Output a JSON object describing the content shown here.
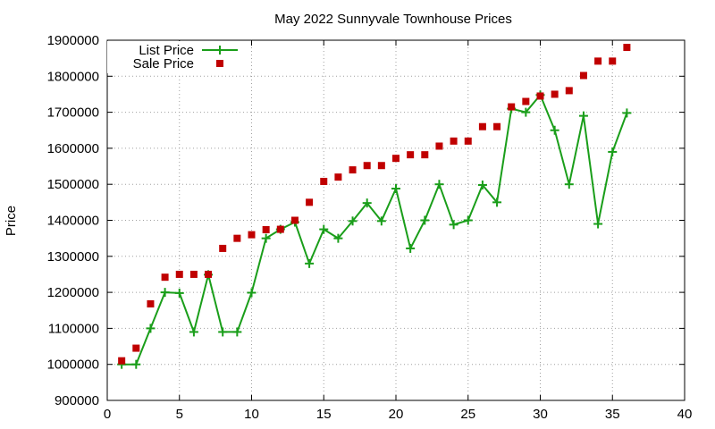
{
  "chart_data": {
    "type": "line",
    "title": "May 2022 Sunnyvale Townhouse Prices",
    "xlabel": "",
    "ylabel": "Price",
    "xlim": [
      0,
      40
    ],
    "ylim": [
      900000,
      1900000
    ],
    "x_ticks": [
      0,
      5,
      10,
      15,
      20,
      25,
      30,
      35,
      40
    ],
    "y_ticks": [
      900000,
      1000000,
      1100000,
      1200000,
      1300000,
      1400000,
      1500000,
      1600000,
      1700000,
      1800000,
      1900000
    ],
    "grid": true,
    "legend_position": "top-left",
    "series": [
      {
        "name": "List Price",
        "style": "line-plus-markers",
        "color": "#1a9e1a",
        "x": [
          1,
          2,
          3,
          4,
          5,
          6,
          7,
          8,
          9,
          10,
          11,
          12,
          13,
          14,
          15,
          16,
          17,
          18,
          19,
          20,
          21,
          22,
          23,
          24,
          25,
          26,
          27,
          28,
          29,
          30,
          31,
          32,
          33,
          34,
          35,
          36
        ],
        "values": [
          1000000,
          1000000,
          1100000,
          1200000,
          1198000,
          1090000,
          1249000,
          1090000,
          1090000,
          1199000,
          1350000,
          1375000,
          1395000,
          1280000,
          1375000,
          1350000,
          1398000,
          1448000,
          1398000,
          1488000,
          1322000,
          1400000,
          1500000,
          1388000,
          1400000,
          1498000,
          1450000,
          1710000,
          1700000,
          1748000,
          1650000,
          1500000,
          1690000,
          1390000,
          1590000,
          1698000
        ]
      },
      {
        "name": "Sale Price",
        "style": "square-markers",
        "color": "#c00000",
        "x": [
          1,
          2,
          3,
          4,
          5,
          6,
          7,
          8,
          9,
          10,
          11,
          12,
          13,
          14,
          15,
          16,
          17,
          18,
          19,
          20,
          21,
          22,
          23,
          24,
          25,
          26,
          27,
          28,
          29,
          30,
          31,
          32,
          33,
          34,
          35,
          36
        ],
        "values": [
          1010000,
          1045000,
          1168000,
          1242000,
          1250000,
          1250000,
          1250000,
          1322000,
          1350000,
          1360000,
          1374000,
          1375000,
          1400000,
          1450000,
          1508000,
          1520000,
          1540000,
          1552000,
          1552000,
          1572000,
          1582000,
          1582000,
          1606000,
          1620000,
          1620000,
          1660000,
          1660000,
          1715000,
          1730000,
          1745000,
          1750000,
          1760000,
          1802000,
          1842000,
          1842000,
          1880000
        ]
      }
    ]
  }
}
